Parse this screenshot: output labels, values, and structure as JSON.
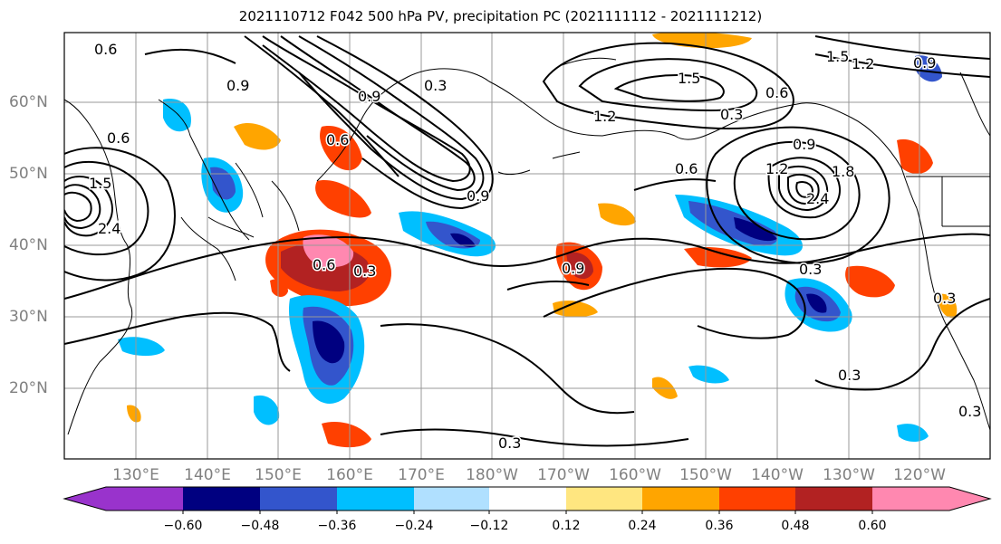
{
  "title": "2021110712 F042 500 hPa PV, precipitation PC (2021111112 - 2021111212)",
  "lat_labels": [
    "60°N",
    "50°N",
    "40°N",
    "30°N",
    "20°N"
  ],
  "lon_labels": [
    "130°E",
    "140°E",
    "150°E",
    "160°E",
    "170°E",
    "180°W",
    "170°W",
    "160°W",
    "150°W",
    "140°W",
    "130°W",
    "120°W"
  ],
  "contour_labels": [
    "0.6",
    "0.9",
    "1.5",
    "0.3",
    "1.2",
    "1.5",
    "1.2",
    "0.9",
    "0.6",
    "0.3",
    "1.2",
    "0.9",
    "1.8",
    "2.4",
    "0.6",
    "0.3",
    "0.9",
    "0.6",
    "0.3",
    "0.3",
    "0.3",
    "0.3",
    "0.3",
    "0.6",
    "1.5",
    "0.9",
    "2.4",
    "0.6",
    "0.9"
  ],
  "colorbar": {
    "ticks": [
      "−0.60",
      "−0.48",
      "−0.36",
      "−0.24",
      "−0.12",
      "0.12",
      "0.24",
      "0.36",
      "0.48",
      "0.60"
    ],
    "colors": [
      "#9933cc",
      "#000080",
      "#3355cc",
      "#00bfff",
      "#b0e0ff",
      "#ffffff",
      "#ffe680",
      "#ffa500",
      "#ff4000",
      "#b22222",
      "#ff88b0"
    ]
  }
}
